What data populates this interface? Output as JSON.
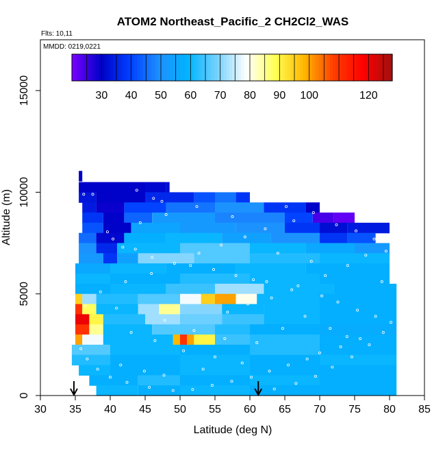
{
  "chart_data": {
    "type": "heatmap",
    "title": "ATOM2 Northeast_Pacific_2 CH2Cl2_WAS",
    "flights_note": "Flts: 10,11",
    "date_note": "MMDD: 0219,0221",
    "xlabel": "Latitude (deg N)",
    "ylabel": "Altitude (m)",
    "xlim": [
      30,
      85
    ],
    "ylim": [
      0,
      17500
    ],
    "x_ticks": [
      30,
      35,
      40,
      45,
      50,
      55,
      60,
      65,
      70,
      75,
      80,
      85
    ],
    "y_ticks": [
      0,
      5000,
      10000,
      15000
    ],
    "colorbar": {
      "range": [
        20,
        128
      ],
      "ticks": [
        30,
        40,
        50,
        60,
        70,
        80,
        90,
        100,
        120
      ],
      "tick_labels": [
        "30",
        "40",
        "50",
        "60",
        "70",
        "80",
        "90",
        "100",
        "120"
      ],
      "colors": [
        "#7a00ff",
        "#0000c8",
        "#0040ff",
        "#1e90ff",
        "#00b4ff",
        "#78d2ff",
        "#ffffff",
        "#ffff50",
        "#ffb400",
        "#ff3c00",
        "#ff0000",
        "#a01010"
      ]
    },
    "arrow_latitudes": [
      34.8,
      61.2
    ],
    "bands": [
      {
        "alt": 10800,
        "segments": [
          [
            35.5,
            36.0,
            30
          ]
        ]
      },
      {
        "alt": 10250,
        "segments": [
          [
            35.5,
            45,
            30
          ],
          [
            45,
            48,
            31
          ],
          [
            48,
            48.5,
            32
          ]
        ]
      },
      {
        "alt": 9750,
        "segments": [
          [
            35.5,
            38,
            33
          ],
          [
            38,
            45,
            30
          ],
          [
            45,
            52,
            36
          ],
          [
            52,
            55,
            42
          ],
          [
            55,
            58,
            46
          ],
          [
            58,
            60,
            38
          ]
        ]
      },
      {
        "alt": 9250,
        "segments": [
          [
            36.0,
            38,
            34
          ],
          [
            38,
            42,
            29
          ],
          [
            42,
            48,
            40
          ],
          [
            48,
            55,
            46
          ],
          [
            55,
            62,
            50
          ],
          [
            62,
            68,
            38
          ],
          [
            68,
            70,
            30
          ]
        ]
      },
      {
        "alt": 8750,
        "segments": [
          [
            36.0,
            39,
            38
          ],
          [
            39,
            42,
            30
          ],
          [
            42,
            46,
            44
          ],
          [
            46,
            55,
            52
          ],
          [
            55,
            65,
            48
          ],
          [
            65,
            69,
            40
          ],
          [
            69,
            72,
            24
          ],
          [
            72,
            75,
            22
          ]
        ]
      },
      {
        "alt": 8250,
        "segments": [
          [
            36.0,
            39,
            42
          ],
          [
            39,
            43,
            30
          ],
          [
            43,
            50,
            55
          ],
          [
            50,
            58,
            52
          ],
          [
            58,
            65,
            50
          ],
          [
            65,
            70,
            38
          ],
          [
            70,
            74,
            32
          ],
          [
            74,
            80,
            34
          ]
        ]
      },
      {
        "alt": 7750,
        "segments": [
          [
            35.5,
            38,
            45
          ],
          [
            38,
            42,
            31
          ],
          [
            42,
            48,
            58
          ],
          [
            48,
            56,
            60
          ],
          [
            56,
            63,
            54
          ],
          [
            63,
            70,
            50
          ],
          [
            70,
            74,
            38
          ],
          [
            74,
            78,
            42
          ]
        ]
      },
      {
        "alt": 7250,
        "segments": [
          [
            35.5,
            38,
            50
          ],
          [
            38,
            41,
            36
          ],
          [
            41,
            50,
            60
          ],
          [
            50,
            60,
            66
          ],
          [
            60,
            68,
            60
          ],
          [
            68,
            75,
            56
          ],
          [
            75,
            80,
            52
          ]
        ]
      },
      {
        "alt": 6750,
        "segments": [
          [
            35.5,
            39,
            52
          ],
          [
            39,
            41,
            38
          ],
          [
            41,
            44,
            54
          ],
          [
            44,
            52,
            70
          ],
          [
            52,
            60,
            66
          ],
          [
            60,
            70,
            62
          ],
          [
            70,
            80,
            60
          ]
        ]
      },
      {
        "alt": 6250,
        "segments": [
          [
            35.0,
            40,
            56
          ],
          [
            40,
            48,
            60
          ],
          [
            48,
            58,
            58
          ],
          [
            58,
            68,
            60
          ],
          [
            68,
            80,
            58
          ]
        ]
      },
      {
        "alt": 5750,
        "segments": [
          [
            35.0,
            40,
            60
          ],
          [
            40,
            50,
            58
          ],
          [
            50,
            60,
            62
          ],
          [
            60,
            70,
            60
          ],
          [
            70,
            80,
            58
          ]
        ]
      },
      {
        "alt": 5250,
        "segments": [
          [
            35.0,
            40,
            58
          ],
          [
            40,
            48,
            60
          ],
          [
            48,
            55,
            64
          ],
          [
            55,
            62,
            72
          ],
          [
            62,
            72,
            60
          ],
          [
            72,
            81,
            58
          ]
        ]
      },
      {
        "alt": 4750,
        "segments": [
          [
            35.0,
            36,
            95
          ],
          [
            36,
            38,
            72
          ],
          [
            38,
            44,
            62
          ],
          [
            44,
            50,
            66
          ],
          [
            50,
            53,
            78
          ],
          [
            53,
            55,
            95
          ],
          [
            55,
            58,
            100
          ],
          [
            58,
            61,
            80
          ],
          [
            61,
            70,
            60
          ],
          [
            70,
            81,
            58
          ]
        ]
      },
      {
        "alt": 4250,
        "segments": [
          [
            35.0,
            36,
            110
          ],
          [
            36,
            38,
            88
          ],
          [
            38,
            44,
            60
          ],
          [
            44,
            47,
            72
          ],
          [
            47,
            50,
            85
          ],
          [
            50,
            56,
            70
          ],
          [
            56,
            62,
            60
          ],
          [
            62,
            70,
            60
          ],
          [
            70,
            81,
            58
          ]
        ]
      },
      {
        "alt": 3750,
        "segments": [
          [
            35.0,
            37,
            120
          ],
          [
            37,
            39,
            90
          ],
          [
            39,
            45,
            62
          ],
          [
            45,
            50,
            72
          ],
          [
            50,
            56,
            68
          ],
          [
            56,
            62,
            64
          ],
          [
            62,
            70,
            60
          ],
          [
            70,
            81,
            58
          ]
        ]
      },
      {
        "alt": 3250,
        "segments": [
          [
            35.0,
            37,
            110
          ],
          [
            37,
            39,
            85
          ],
          [
            39,
            46,
            60
          ],
          [
            46,
            55,
            66
          ],
          [
            55,
            60,
            62
          ],
          [
            60,
            70,
            58
          ],
          [
            70,
            81,
            57
          ]
        ]
      },
      {
        "alt": 2750,
        "segments": [
          [
            35.0,
            36,
            100
          ],
          [
            36,
            39,
            78
          ],
          [
            39,
            49,
            60
          ],
          [
            49,
            50,
            98
          ],
          [
            50,
            51,
            110
          ],
          [
            51,
            52,
            100
          ],
          [
            52,
            55,
            90
          ],
          [
            55,
            60,
            64
          ],
          [
            60,
            70,
            62
          ],
          [
            70,
            81,
            58
          ]
        ]
      },
      {
        "alt": 2250,
        "segments": [
          [
            34.5,
            40,
            66
          ],
          [
            40,
            50,
            60
          ],
          [
            50,
            60,
            58
          ],
          [
            60,
            70,
            62
          ],
          [
            70,
            81,
            58
          ]
        ]
      },
      {
        "alt": 1750,
        "segments": [
          [
            34.5,
            40,
            62
          ],
          [
            40,
            50,
            58
          ],
          [
            50,
            60,
            60
          ],
          [
            60,
            70,
            58
          ],
          [
            70,
            81,
            60
          ]
        ]
      },
      {
        "alt": 1250,
        "segments": [
          [
            35.5,
            40,
            60
          ],
          [
            40,
            50,
            58
          ],
          [
            50,
            60,
            60
          ],
          [
            60,
            70,
            58
          ],
          [
            70,
            81,
            58
          ]
        ]
      },
      {
        "alt": 750,
        "segments": [
          [
            37.0,
            44,
            58
          ],
          [
            44,
            50,
            62
          ],
          [
            50,
            60,
            58
          ],
          [
            60,
            70,
            60
          ],
          [
            70,
            81,
            58
          ]
        ]
      },
      {
        "alt": 250,
        "segments": [
          [
            38.0,
            44,
            60
          ],
          [
            44,
            50,
            58
          ],
          [
            50,
            60,
            60
          ],
          [
            60,
            70,
            58
          ],
          [
            70,
            81,
            58
          ]
        ]
      }
    ],
    "samples": [
      [
        36.2,
        9900
      ],
      [
        37.5,
        9900
      ],
      [
        43.8,
        10100
      ],
      [
        46.2,
        9700
      ],
      [
        47.4,
        9550
      ],
      [
        39.6,
        8050
      ],
      [
        40.4,
        7700
      ],
      [
        41.8,
        7300
      ],
      [
        43.6,
        7200
      ],
      [
        46.0,
        6800
      ],
      [
        51.5,
        6400
      ],
      [
        54.8,
        6200
      ],
      [
        58.0,
        5900
      ],
      [
        60.5,
        5700
      ],
      [
        62.4,
        5600
      ],
      [
        66.0,
        5200
      ],
      [
        70.3,
        4900
      ],
      [
        72.6,
        4600
      ],
      [
        75.4,
        4200
      ],
      [
        78.0,
        3900
      ],
      [
        80.2,
        3600
      ],
      [
        79.1,
        3100
      ],
      [
        75.8,
        2800
      ],
      [
        73.0,
        2400
      ],
      [
        70.0,
        2100
      ],
      [
        68.2,
        1800
      ],
      [
        65.5,
        1500
      ],
      [
        62.8,
        1200
      ],
      [
        60.2,
        900
      ],
      [
        57.4,
        700
      ],
      [
        54.6,
        500
      ],
      [
        51.8,
        300
      ],
      [
        49.0,
        250
      ],
      [
        45.6,
        400
      ],
      [
        42.4,
        650
      ],
      [
        40.0,
        900
      ],
      [
        38.2,
        1300
      ],
      [
        36.7,
        1800
      ],
      [
        35.8,
        2300
      ],
      [
        36.4,
        4400
      ],
      [
        38.6,
        5100
      ],
      [
        42.2,
        5600
      ],
      [
        45.9,
        6000
      ],
      [
        49.2,
        6500
      ],
      [
        52.7,
        7000
      ],
      [
        55.9,
        7400
      ],
      [
        59.3,
        7800
      ],
      [
        62.2,
        8200
      ],
      [
        66.3,
        8600
      ],
      [
        69.1,
        9000
      ],
      [
        72.4,
        8400
      ],
      [
        75.2,
        8100
      ],
      [
        77.8,
        7700
      ],
      [
        79.5,
        7100
      ],
      [
        68.8,
        6600
      ],
      [
        64.0,
        7000
      ],
      [
        57.5,
        8800
      ],
      [
        52.4,
        9300
      ],
      [
        48.0,
        8900
      ],
      [
        44.3,
        8500
      ],
      [
        40.9,
        4300
      ],
      [
        47.8,
        3700
      ],
      [
        52.0,
        3200
      ],
      [
        56.4,
        2800
      ],
      [
        61.0,
        2600
      ],
      [
        64.7,
        3300
      ],
      [
        67.9,
        3900
      ],
      [
        71.5,
        3300
      ],
      [
        73.9,
        2900
      ],
      [
        77.1,
        2500
      ],
      [
        74.6,
        1900
      ],
      [
        71.8,
        1400
      ],
      [
        69.4,
        950
      ],
      [
        66.6,
        600
      ],
      [
        63.5,
        320
      ],
      [
        58.9,
        1600
      ],
      [
        55.0,
        1900
      ],
      [
        50.5,
        2200
      ],
      [
        46.4,
        2700
      ],
      [
        43.0,
        3100
      ],
      [
        41.5,
        1500
      ],
      [
        44.9,
        1200
      ],
      [
        47.7,
        1000
      ],
      [
        53.3,
        1300
      ],
      [
        56.8,
        4100
      ],
      [
        59.7,
        4500
      ],
      [
        63.1,
        4800
      ],
      [
        66.9,
        5400
      ],
      [
        70.8,
        5900
      ],
      [
        74.0,
        6400
      ],
      [
        76.6,
        6900
      ],
      [
        78.9,
        5600
      ],
      [
        65.2,
        9300
      ],
      [
        70.6,
        9500
      ],
      [
        73.3,
        9350
      ]
    ]
  }
}
